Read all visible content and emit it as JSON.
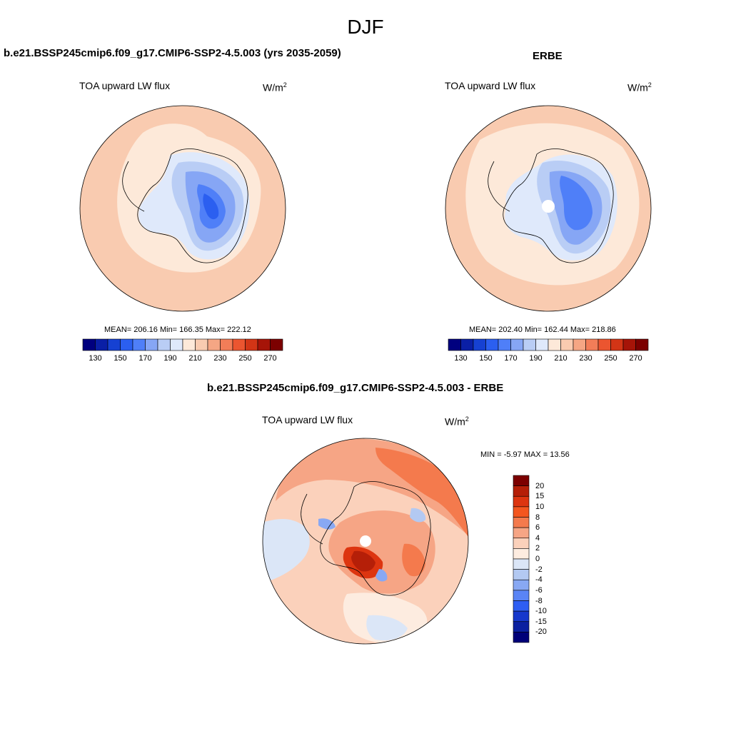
{
  "season_title": "DJF",
  "panels": [
    {
      "title": "b.e21.BSSP245cmip6.f09_g17.CMIP6-SSP2-4.5.003 (yrs 2035-2059)",
      "variable": "TOA upward LW flux",
      "units_base": "W/m",
      "units_exp": "2",
      "stats_text": "MEAN= 206.16  Min= 166.35  Max= 222.12",
      "mean": 206.16,
      "min": 166.35,
      "max": 222.12
    },
    {
      "title": "ERBE",
      "variable": "TOA upward LW flux",
      "units_base": "W/m",
      "units_exp": "2",
      "stats_text": "MEAN= 202.40  Min= 162.44  Max= 218.86",
      "mean": 202.4,
      "min": 162.44,
      "max": 218.86
    },
    {
      "title": "b.e21.BSSP245cmip6.f09_g17.CMIP6-SSP2-4.5.003 - ERBE",
      "variable": "TOA upward LW flux",
      "units_base": "W/m",
      "units_exp": "2",
      "stats_text": "MIN =  -5.97 MAX =  13.56",
      "min": -5.97,
      "max": 13.56
    }
  ],
  "abs_colorbar": {
    "colors": [
      "#00007f",
      "#0a1fa6",
      "#1641d2",
      "#2b5ff0",
      "#4f7ff8",
      "#86a6f5",
      "#b9cdf5",
      "#dfe9fb",
      "#fde9d9",
      "#f9cbb0",
      "#f5a684",
      "#f27d58",
      "#eb5530",
      "#d23516",
      "#a61408",
      "#7c0000"
    ],
    "tick_labels": [
      "130",
      "150",
      "170",
      "190",
      "210",
      "230",
      "250",
      "270"
    ],
    "tick_values": [
      130,
      150,
      170,
      190,
      210,
      230,
      250,
      270
    ]
  },
  "diff_colorbar": {
    "colors": [
      "#7c0000",
      "#b51f08",
      "#dd3510",
      "#f4561f",
      "#f47a4d",
      "#f6a585",
      "#fbd1bb",
      "#fdece0",
      "#dbe6f7",
      "#b3c9f2",
      "#88a8f3",
      "#5a84f5",
      "#2e5ef3",
      "#1638cc",
      "#0b20a0",
      "#000078"
    ],
    "tick_labels": [
      "20",
      "15",
      "10",
      "8",
      "6",
      "4",
      "2",
      "0",
      "-2",
      "-4",
      "-6",
      "-8",
      "-10",
      "-15",
      "-20"
    ]
  }
}
